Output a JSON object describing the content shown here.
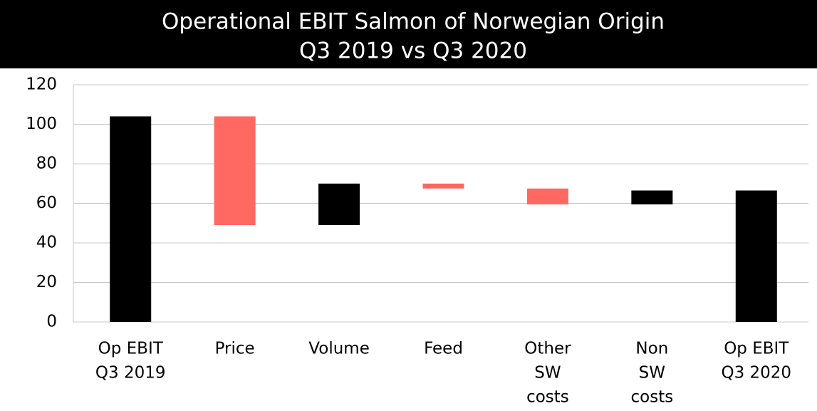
{
  "chart_data": {
    "type": "waterfall",
    "title": "Operational EBIT Salmon of Norwegian Origin",
    "subtitle": "Q3 2019 vs Q3 2020",
    "categories": [
      [
        "Op EBIT",
        "Q3 2019"
      ],
      [
        "Price"
      ],
      [
        "Volume"
      ],
      [
        "Feed"
      ],
      [
        "Other",
        "SW",
        "costs"
      ],
      [
        "Non",
        "SW",
        "costs"
      ],
      [
        "Op EBIT",
        "Q3 2020"
      ]
    ],
    "values": [
      104,
      -55,
      21,
      -2.5,
      -8,
      7,
      66.5
    ],
    "measure": [
      "absolute",
      "relative",
      "relative",
      "relative",
      "relative",
      "relative",
      "absolute"
    ],
    "total_color": "#000000",
    "increase_color": "#000000",
    "decrease_color": "#ff6961",
    "ylim": [
      0,
      120
    ],
    "yticks": [
      0,
      20,
      40,
      60,
      80,
      100,
      120
    ],
    "grid": true
  }
}
